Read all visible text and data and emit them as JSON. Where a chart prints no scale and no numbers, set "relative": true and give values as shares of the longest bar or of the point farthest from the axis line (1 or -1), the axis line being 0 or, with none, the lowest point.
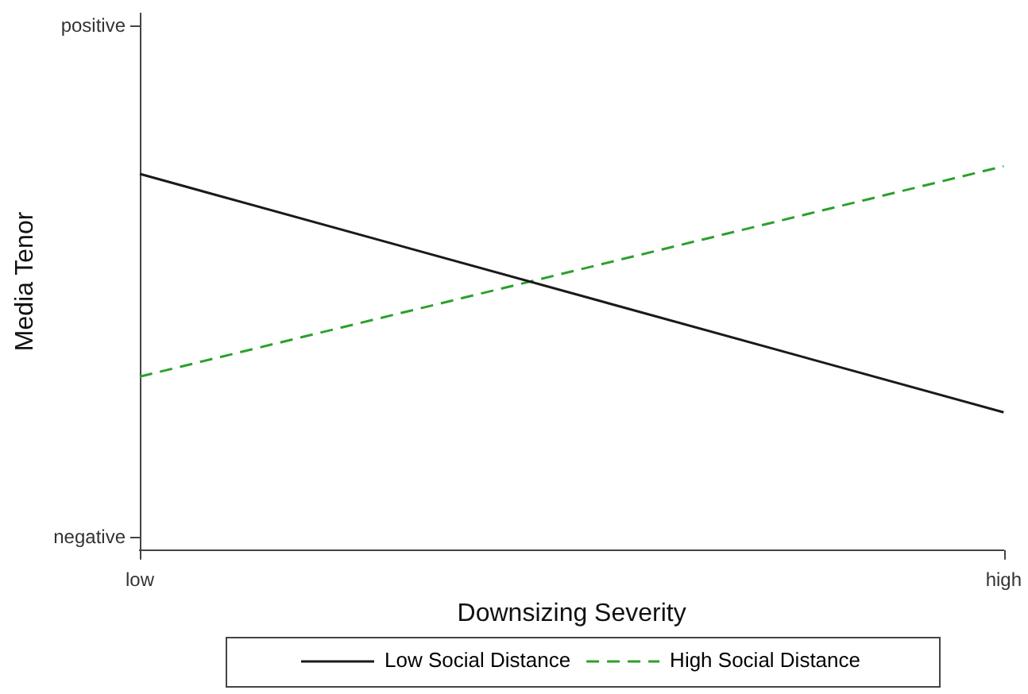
{
  "chart_data": {
    "type": "line",
    "xlabel": "Downsizing Severity",
    "ylabel": "Media Tenor",
    "categories": [
      "low",
      "high"
    ],
    "relative": true,
    "series": [
      {
        "name": "Low Social Distance",
        "color": "#1a1a1a",
        "values": [
          0.98,
          0.359
        ],
        "line_style": "solid"
      },
      {
        "name": "High Social Distance",
        "color": "#2ca02c",
        "values": [
          0.452,
          1
        ],
        "line_style": "dashed"
      }
    ],
    "annotations": [
      "positive",
      "negative"
    ],
    "legend": "bottom",
    "marker": "none"
  }
}
